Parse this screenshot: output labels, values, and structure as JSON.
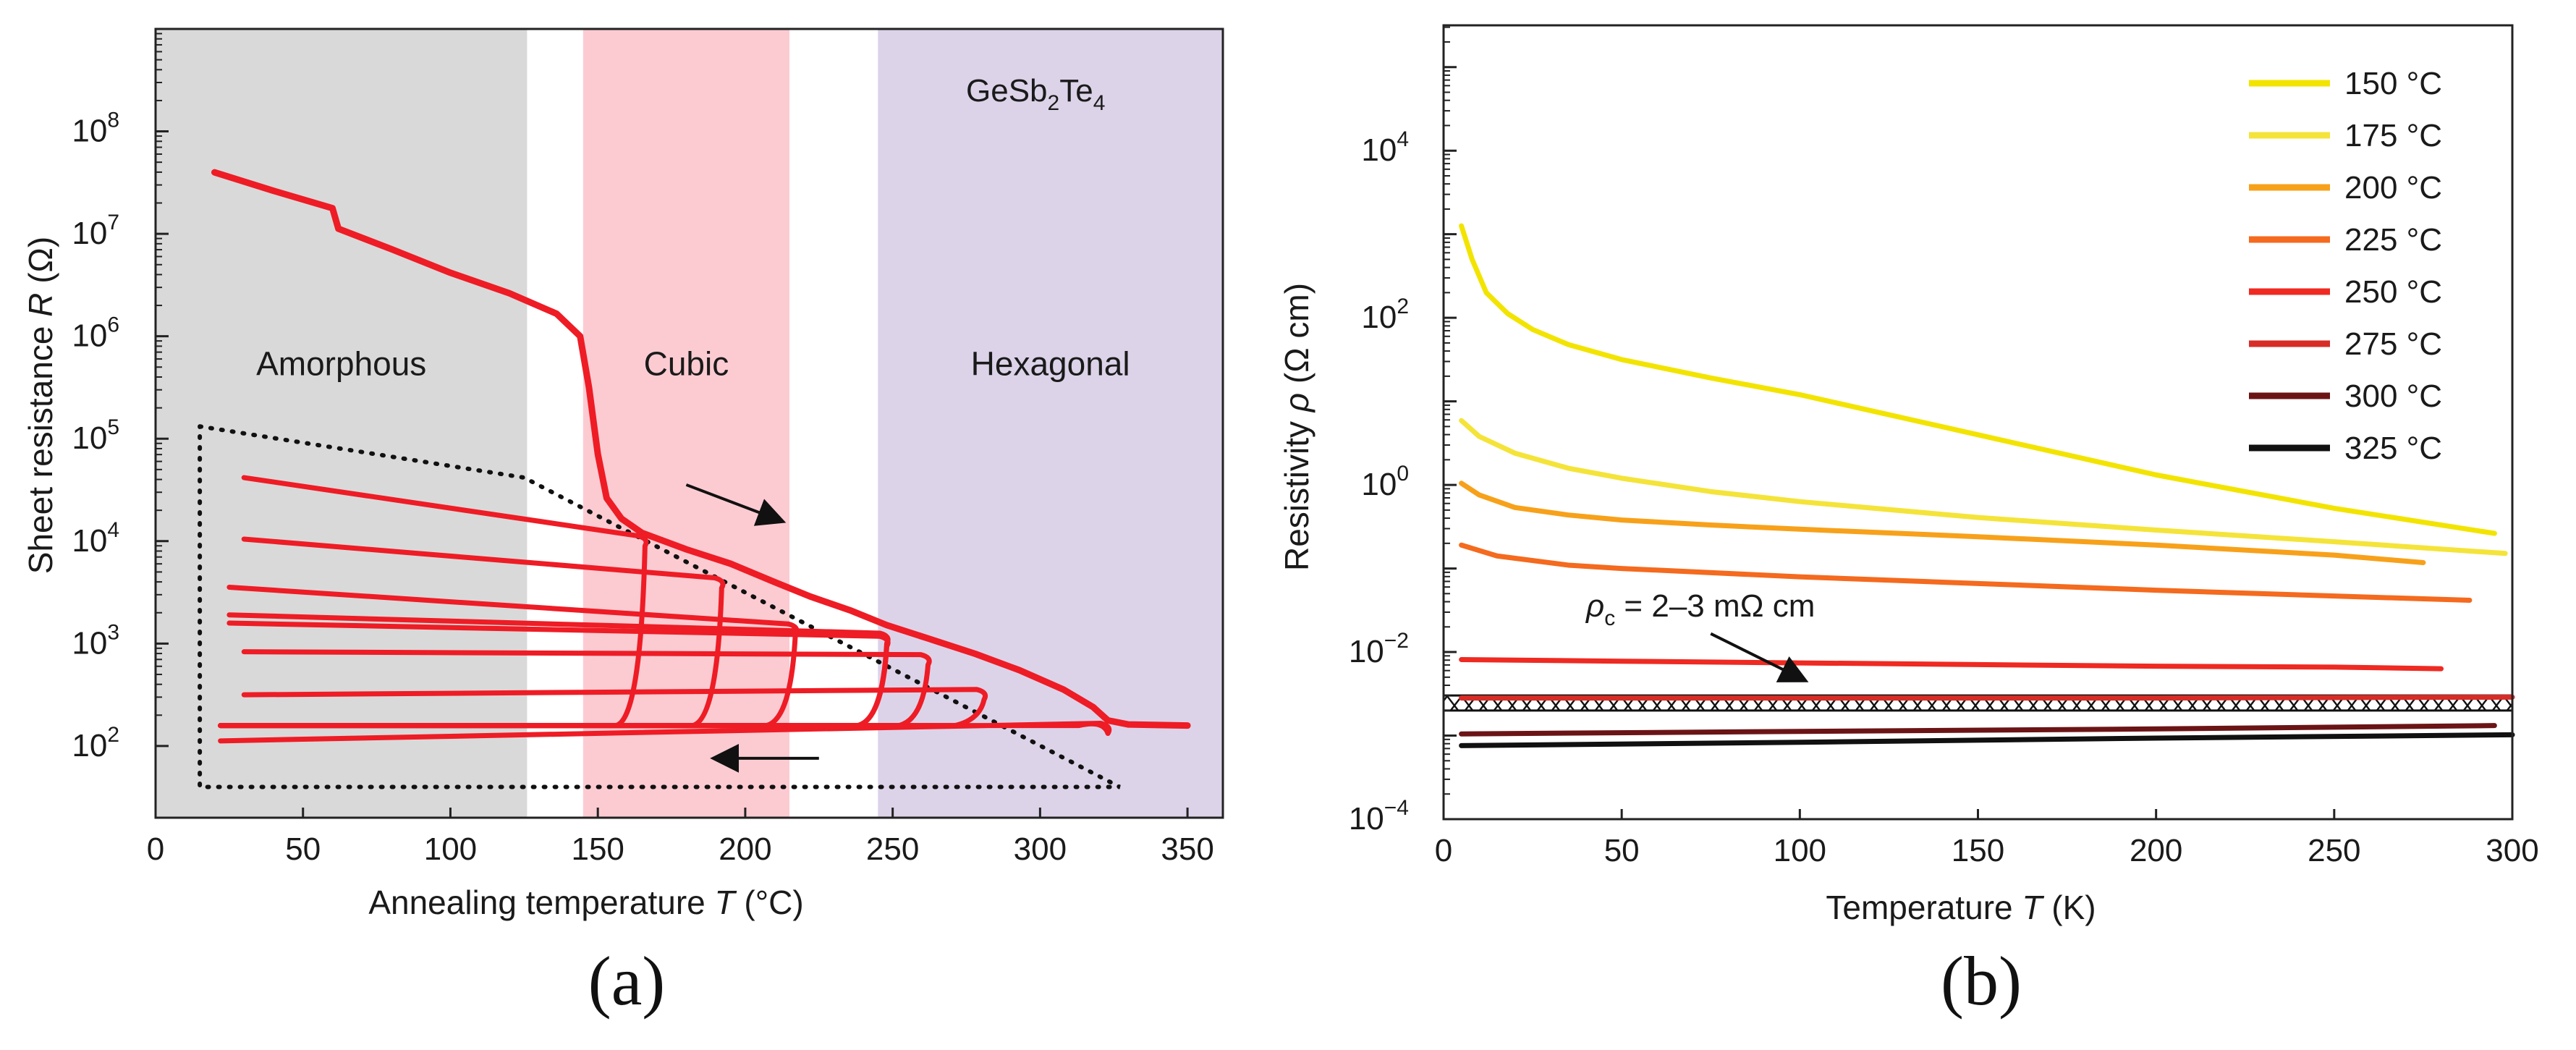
{
  "panels": [
    {
      "caption": "(a)"
    },
    {
      "caption": "(b)"
    }
  ],
  "chart_data": [
    {
      "type": "line",
      "title": "",
      "material_label": {
        "prefix": "GeSb",
        "sub1": "2",
        "mid": "Te",
        "sub2": "4"
      },
      "xlabel": {
        "text": "Annealing temperature ",
        "var": "T",
        "unit": " (°C)"
      },
      "ylabel": {
        "text": "Sheet resistance ",
        "var": "R",
        "unit": " (Ω)"
      },
      "xlim": [
        0,
        362
      ],
      "ylim_log10": [
        1.3,
        9.0
      ],
      "xticks": [
        0,
        50,
        100,
        150,
        200,
        250,
        300,
        350
      ],
      "yticks_exp": [
        2,
        3,
        4,
        5,
        6,
        7,
        8
      ],
      "tick_base": "10",
      "phase_bands": [
        {
          "name": "Amorphous",
          "x": [
            0,
            126
          ],
          "color": "#d9d9d9"
        },
        {
          "name": "Cubic",
          "x": [
            145,
            215
          ],
          "color": "#fccbd2"
        },
        {
          "name": "Hexagonal",
          "x": [
            245,
            362
          ],
          "color": "#dcd3e9"
        }
      ],
      "series_color": "#ee1c25",
      "main_curve": [
        [
          20,
          7.6
        ],
        [
          40,
          7.42
        ],
        [
          60,
          7.25
        ],
        [
          62,
          7.05
        ],
        [
          80,
          6.85
        ],
        [
          100,
          6.62
        ],
        [
          120,
          6.42
        ],
        [
          136,
          6.22
        ],
        [
          144,
          6.0
        ],
        [
          147,
          5.5
        ],
        [
          150,
          4.85
        ],
        [
          153,
          4.42
        ],
        [
          158,
          4.22
        ],
        [
          165,
          4.08
        ],
        [
          180,
          3.92
        ],
        [
          195,
          3.78
        ],
        [
          210,
          3.6
        ],
        [
          222,
          3.46
        ],
        [
          236,
          3.32
        ],
        [
          248,
          3.18
        ],
        [
          262,
          3.05
        ],
        [
          278,
          2.9
        ],
        [
          293,
          2.74
        ],
        [
          308,
          2.55
        ],
        [
          318,
          2.38
        ],
        [
          323,
          2.25
        ],
        [
          330,
          2.21
        ],
        [
          350,
          2.2
        ]
      ],
      "loops": [
        {
          "start": [
            30,
            4.62
          ],
          "turn": [
            166,
            4.08
          ],
          "base": 2.2
        },
        {
          "start": [
            30,
            4.02
          ],
          "turn": [
            192,
            3.67
          ],
          "base": 2.2
        },
        {
          "start": [
            25,
            3.55
          ],
          "turn": [
            217,
            3.22
          ],
          "base": 2.2
        },
        {
          "start": [
            25,
            3.28
          ],
          "turn": [
            248,
            3.13
          ],
          "base": 2.2
        },
        {
          "start": [
            25,
            3.2
          ],
          "turn": [
            248,
            3.1
          ],
          "base": 2.2
        },
        {
          "start": [
            30,
            2.92
          ],
          "turn": [
            262,
            2.92
          ],
          "base": 2.2
        },
        {
          "start": [
            30,
            2.5
          ],
          "turn": [
            281,
            2.58
          ],
          "base": 2.2
        },
        {
          "start": [
            22,
            2.05
          ],
          "turn": [
            323,
            2.25
          ],
          "base": 2.2
        }
      ],
      "dotted_region": [
        [
          15,
          5.12
        ],
        [
          125,
          4.62
        ],
        [
          327,
          1.6
        ],
        [
          15,
          1.6
        ],
        [
          15,
          5.12
        ]
      ],
      "annotations": [
        {
          "type": "arrow",
          "from": [
            180,
            4.55
          ],
          "to": [
            212,
            4.2
          ]
        },
        {
          "type": "arrow",
          "from": [
            225,
            1.88
          ],
          "to": [
            190,
            1.88
          ]
        }
      ]
    },
    {
      "type": "line",
      "title": "",
      "xlabel": {
        "text": "Temperature ",
        "var": "T",
        "unit": " (K)"
      },
      "ylabel": {
        "text": "Resistivity ",
        "var": "ρ",
        "unit": " (Ω cm)"
      },
      "xlim": [
        0,
        300
      ],
      "ylim_log10": [
        -4,
        5.5
      ],
      "xticks": [
        0,
        50,
        100,
        150,
        200,
        250,
        300
      ],
      "yticks_exp": [
        -4,
        -2,
        0,
        2,
        4
      ],
      "tick_base": "10",
      "series": [
        {
          "name": "150 °C",
          "color": "#f2e400",
          "x": [
            5,
            8,
            12,
            18,
            25,
            35,
            50,
            75,
            100,
            150,
            200,
            250,
            295
          ],
          "log10_y": [
            3.1,
            2.7,
            2.3,
            2.05,
            1.86,
            1.68,
            1.5,
            1.28,
            1.08,
            0.6,
            0.12,
            -0.28,
            -0.58
          ]
        },
        {
          "name": "175 °C",
          "color": "#f4e43a",
          "x": [
            5,
            10,
            20,
            35,
            50,
            75,
            100,
            150,
            200,
            250,
            298
          ],
          "log10_y": [
            0.77,
            0.58,
            0.38,
            0.2,
            0.08,
            -0.08,
            -0.2,
            -0.39,
            -0.54,
            -0.68,
            -0.82
          ]
        },
        {
          "name": "200 °C",
          "color": "#f7a11a",
          "x": [
            5,
            10,
            20,
            35,
            50,
            75,
            100,
            150,
            200,
            250,
            275
          ],
          "log10_y": [
            0.02,
            -0.12,
            -0.27,
            -0.36,
            -0.42,
            -0.48,
            -0.53,
            -0.62,
            -0.72,
            -0.84,
            -0.93
          ]
        },
        {
          "name": "225 °C",
          "color": "#f46a1e",
          "x": [
            5,
            15,
            35,
            50,
            100,
            150,
            200,
            250,
            288
          ],
          "log10_y": [
            -0.72,
            -0.85,
            -0.96,
            -1.0,
            -1.1,
            -1.18,
            -1.26,
            -1.33,
            -1.38
          ]
        },
        {
          "name": "250 °C",
          "color": "#ee2a22",
          "x": [
            5,
            50,
            100,
            150,
            200,
            250,
            280
          ],
          "log10_y": [
            -2.09,
            -2.11,
            -2.13,
            -2.15,
            -2.17,
            -2.18,
            -2.2
          ]
        },
        {
          "name": "275 °C",
          "color": "#d82c27",
          "x": [
            5,
            100,
            200,
            300
          ],
          "log10_y": [
            -2.55,
            -2.55,
            -2.55,
            -2.54
          ]
        },
        {
          "name": "300 °C",
          "color": "#6b1416",
          "x": [
            5,
            100,
            200,
            295
          ],
          "log10_y": [
            -2.98,
            -2.95,
            -2.92,
            -2.88
          ]
        },
        {
          "name": "325 °C",
          "color": "#111111",
          "x": [
            5,
            100,
            200,
            300
          ],
          "log10_y": [
            -3.12,
            -3.08,
            -3.03,
            -2.99
          ]
        }
      ],
      "critical_band": {
        "label_var": "ρ",
        "label_sub": "c",
        "label_text": " = 2–3 mΩ cm",
        "log10_y": [
          -2.7,
          -2.52
        ]
      },
      "annotations": [
        {
          "type": "arrow",
          "from": [
            75,
            -1.78
          ],
          "to": [
            101,
            -2.33
          ]
        }
      ],
      "legend": "top-right"
    }
  ]
}
